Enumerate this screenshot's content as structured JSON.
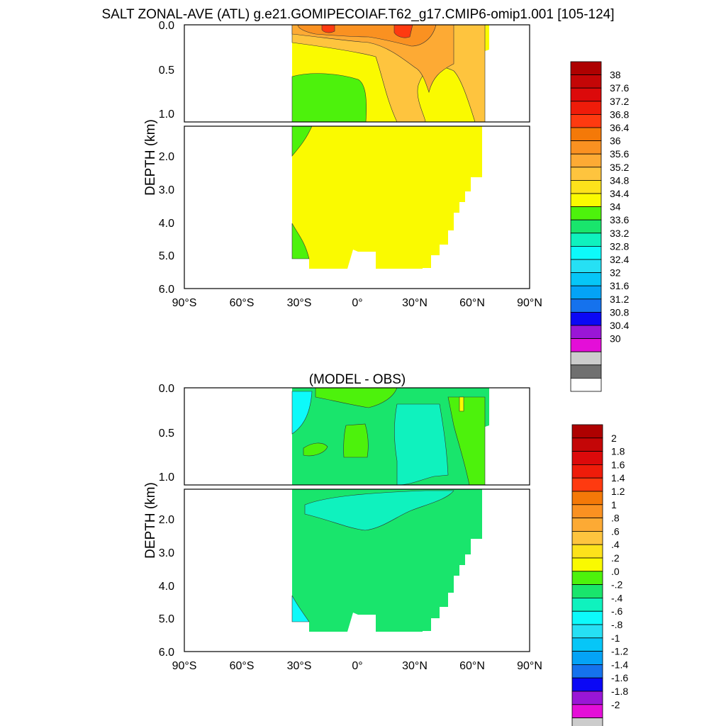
{
  "figure_title": "SALT ZONAL-AVE (ATL) g.e21.GOMIPECOIAF.T62_g17.CMIP6-omip1.001 [105-124]",
  "colors": {
    "salt_colorbar": [
      "#ffffff",
      "#707070",
      "#cccccc",
      "#e40ed8",
      "#9a16d6",
      "#0b08f5",
      "#1572ed",
      "#04a3f6",
      "#06c6f7",
      "#26e0f4",
      "#0dfafa",
      "#0ff2be",
      "#19e56c",
      "#4df20c",
      "#fafa00",
      "#fde21b",
      "#fec43e",
      "#fdaa34",
      "#fa9121",
      "#f47908",
      "#fe3a10",
      "#ef1c0a",
      "#dc0a0b",
      "#c40607",
      "#ae0101"
    ],
    "anom_colorbar": [
      "#ffffff",
      "#707070",
      "#cccccc",
      "#e40ed8",
      "#9a16d6",
      "#0b08f5",
      "#1572ed",
      "#04a3f6",
      "#06c6f7",
      "#26e0f4",
      "#0dfafa",
      "#0ff2be",
      "#19e56c",
      "#4df20c",
      "#fafa00",
      "#fde21b",
      "#fec43e",
      "#fdaa34",
      "#fa9121",
      "#f47908",
      "#fe3a10",
      "#ef1c0a",
      "#dc0a0b",
      "#c40607",
      "#ae0101"
    ]
  },
  "chart_data": [
    {
      "type": "heatmap",
      "title": "",
      "ylabel": "DEPTH (km)",
      "xlabel": "",
      "x_ticks": [
        "90°S",
        "60°S",
        "30°S",
        "0°",
        "30°N",
        "60°N",
        "90°N"
      ],
      "x_range": [
        -90,
        90
      ],
      "y_ticks_upper": [
        "0.0",
        "0.5",
        "1.0"
      ],
      "y_ticks_lower": [
        "2.0",
        "3.0",
        "4.0",
        "5.0",
        "6.0"
      ],
      "y_range_upper_km": [
        0,
        1.1
      ],
      "y_range_lower_km": [
        1.1,
        6.0
      ],
      "colorbar_labels": [
        "38",
        "37.6",
        "37.2",
        "36.8",
        "36.4",
        "36",
        "35.6",
        "35.2",
        "34.8",
        "34.4",
        "34",
        "33.6",
        "33.2",
        "32.8",
        "32.4",
        "32",
        "31.6",
        "31.2",
        "30.8",
        "30.4",
        "30"
      ],
      "regions": [
        {
          "band": "upper",
          "lat": [
            -34,
            -5
          ],
          "depth": [
            0.15,
            1.1
          ],
          "value": 34.6
        },
        {
          "band": "upper",
          "lat": [
            -34,
            68
          ],
          "depth": [
            0,
            1.1
          ],
          "value": 35.0
        },
        {
          "band": "upper",
          "lat": [
            -34,
            40
          ],
          "depth": [
            0,
            0.15
          ],
          "value": 35.8
        },
        {
          "band": "upper",
          "lat": [
            -20,
            -10
          ],
          "depth": [
            0,
            0.05
          ],
          "value": 37.0
        },
        {
          "band": "upper",
          "lat": [
            20,
            25
          ],
          "depth": [
            0,
            0.1
          ],
          "value": 37.0
        },
        {
          "band": "lower",
          "lat": [
            -34,
            -30
          ],
          "depth": [
            1.1,
            2.0
          ],
          "value": 34.6
        },
        {
          "band": "lower",
          "lat": [
            -34,
            68
          ],
          "depth": [
            1.1,
            5.4
          ],
          "value": 35.0
        }
      ]
    },
    {
      "type": "heatmap",
      "title": "(MODEL - OBS)",
      "ylabel": "DEPTH (km)",
      "xlabel": "",
      "x_ticks": [
        "90°S",
        "60°S",
        "30°S",
        "0°",
        "30°N",
        "60°N",
        "90°N"
      ],
      "x_range": [
        -90,
        90
      ],
      "y_ticks_upper": [
        "0.0",
        "0.5",
        "1.0"
      ],
      "y_ticks_lower": [
        "2.0",
        "3.0",
        "4.0",
        "5.0",
        "6.0"
      ],
      "y_range_upper_km": [
        0,
        1.1
      ],
      "y_range_lower_km": [
        1.1,
        6.0
      ],
      "colorbar_labels": [
        "2",
        "1.8",
        "1.6",
        "1.4",
        "1.2",
        "1",
        ".8",
        ".6",
        ".4",
        ".2",
        ".0",
        "-.2",
        "-.4",
        "-.6",
        "-.8",
        "-1",
        "-1.2",
        "-1.4",
        "-1.6",
        "-1.8",
        "-2"
      ],
      "regions": [
        {
          "band": "upper",
          "lat": [
            -34,
            68
          ],
          "depth": [
            0,
            1.1
          ],
          "value": 0.1
        },
        {
          "band": "upper",
          "lat": [
            -34,
            -28
          ],
          "depth": [
            0,
            0.6
          ],
          "value": -0.3
        },
        {
          "band": "upper",
          "lat": [
            20,
            45
          ],
          "depth": [
            0.2,
            1.1
          ],
          "value": -0.1
        },
        {
          "band": "upper",
          "lat": [
            45,
            68
          ],
          "depth": [
            0,
            1.1
          ],
          "value": 0.3
        },
        {
          "band": "lower",
          "lat": [
            -34,
            68
          ],
          "depth": [
            1.1,
            5.4
          ],
          "value": 0.1
        },
        {
          "band": "lower",
          "lat": [
            -30,
            45
          ],
          "depth": [
            1.3,
            2.2
          ],
          "value": -0.1
        }
      ]
    }
  ]
}
